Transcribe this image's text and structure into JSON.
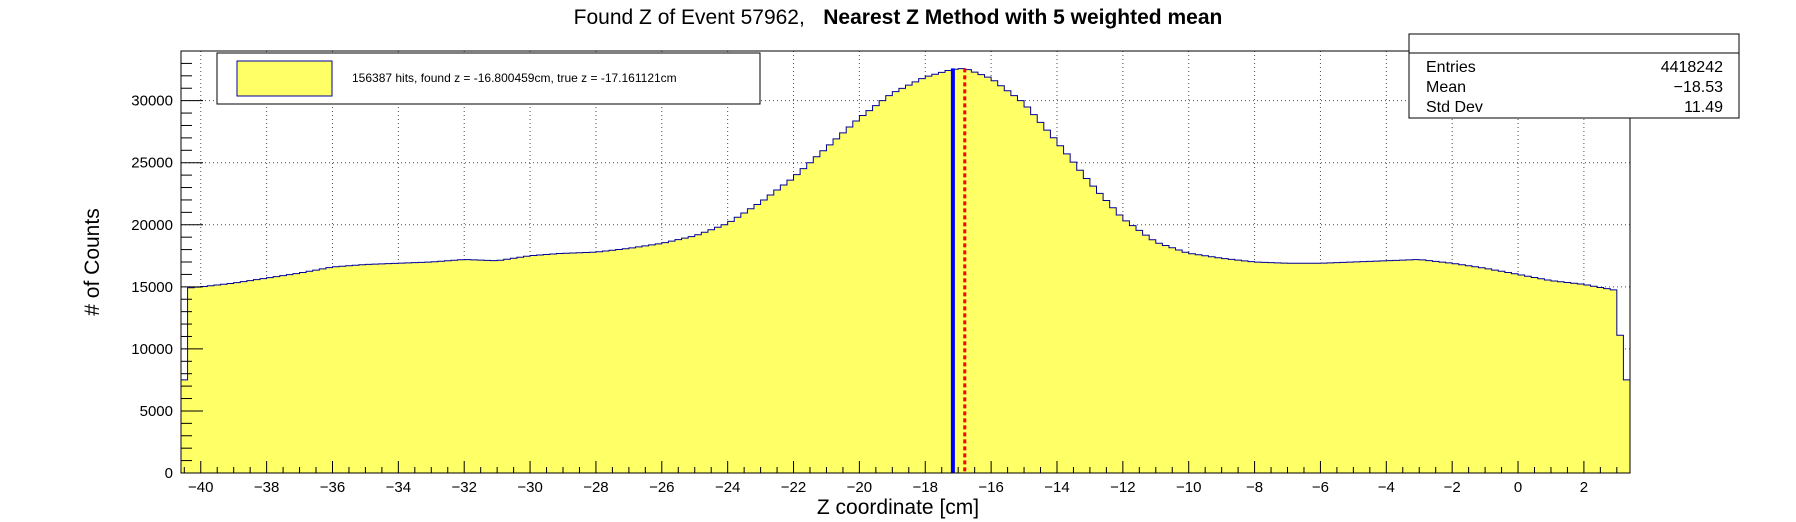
{
  "chart_data": {
    "type": "histogram",
    "title": {
      "normal": "Found Z of Event 57962,",
      "bold": "Nearest Z Method with 5 weighted mean"
    },
    "xlabel": "Z coordinate [cm]",
    "ylabel": "# of Counts",
    "xlim": [
      -40.6,
      3.4
    ],
    "ylim": [
      0,
      34000
    ],
    "x_ticks": [
      -40,
      -38,
      -36,
      -34,
      -32,
      -30,
      -28,
      -26,
      -24,
      -22,
      -20,
      -18,
      -16,
      -14,
      -12,
      -10,
      -8,
      -6,
      -4,
      -2,
      0,
      2
    ],
    "y_ticks": [
      0,
      5000,
      10000,
      15000,
      20000,
      25000,
      30000
    ],
    "grid": true,
    "fill_color": "#ffff66",
    "line_color": "#000099",
    "bin_width": 0.2,
    "anchors": [
      [
        -40.6,
        7500
      ],
      [
        -40.4,
        14900
      ],
      [
        -40.0,
        15000
      ],
      [
        -39.0,
        15300
      ],
      [
        -38.0,
        15700
      ],
      [
        -37.0,
        16100
      ],
      [
        -36.0,
        16600
      ],
      [
        -35.0,
        16800
      ],
      [
        -34.0,
        16900
      ],
      [
        -33.0,
        17000
      ],
      [
        -32.0,
        17200
      ],
      [
        -31.0,
        17100
      ],
      [
        -30.0,
        17500
      ],
      [
        -29.0,
        17700
      ],
      [
        -28.0,
        17800
      ],
      [
        -27.0,
        18100
      ],
      [
        -26.0,
        18500
      ],
      [
        -25.0,
        19100
      ],
      [
        -24.0,
        20100
      ],
      [
        -23.0,
        21800
      ],
      [
        -22.0,
        23800
      ],
      [
        -21.0,
        26200
      ],
      [
        -20.0,
        28600
      ],
      [
        -19.0,
        30600
      ],
      [
        -18.0,
        31900
      ],
      [
        -17.2,
        32500
      ],
      [
        -16.8,
        32600
      ],
      [
        -16.0,
        31800
      ],
      [
        -15.0,
        29800
      ],
      [
        -14.0,
        26700
      ],
      [
        -13.0,
        23400
      ],
      [
        -12.0,
        20500
      ],
      [
        -11.0,
        18600
      ],
      [
        -10.0,
        17700
      ],
      [
        -9.0,
        17300
      ],
      [
        -8.0,
        17000
      ],
      [
        -7.0,
        16900
      ],
      [
        -6.0,
        16900
      ],
      [
        -5.0,
        17000
      ],
      [
        -4.0,
        17100
      ],
      [
        -3.0,
        17200
      ],
      [
        -2.0,
        16900
      ],
      [
        -1.0,
        16500
      ],
      [
        0.0,
        16000
      ],
      [
        1.0,
        15500
      ],
      [
        2.0,
        15200
      ],
      [
        3.0,
        14700
      ],
      [
        3.2,
        7500
      ]
    ],
    "markers": {
      "found_z": -16.800459,
      "true_z": -17.161121,
      "found_color": "#ff0000",
      "true_color": "#0000ff"
    },
    "legend": {
      "entries": [
        "156387 hits, found z = -16.800459cm, true z = -17.161121cm"
      ],
      "placement": "top-left"
    },
    "stats": {
      "placement": "top-right",
      "rows": [
        {
          "label": "Entries",
          "value": "4418242"
        },
        {
          "label": "Mean",
          "value": "−18.53"
        },
        {
          "label": "Std Dev",
          "value": "11.49"
        }
      ]
    }
  }
}
